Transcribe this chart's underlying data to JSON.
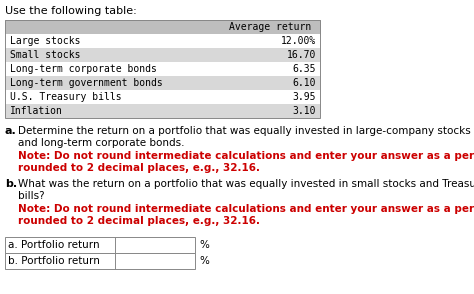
{
  "title": "Use the following table:",
  "table_header": "Average return",
  "table_rows": [
    [
      "Large stocks",
      "12.00%"
    ],
    [
      "Small stocks",
      "16.70"
    ],
    [
      "Long-term corporate bonds",
      "6.35"
    ],
    [
      "Long-term government bonds",
      "6.10"
    ],
    [
      "U.S. Treasury bills",
      "3.95"
    ],
    [
      "Inflation",
      "3.10"
    ]
  ],
  "part_a_label": "a.",
  "part_a_line1": "Determine the return on a portfolio that was equally invested in large-company stocks",
  "part_a_line2": "and long-term corporate bonds.",
  "part_a_note1": "Note: Do not round intermediate calculations and enter your answer as a percent",
  "part_a_note2": "rounded to 2 decimal places, e.g., 32.16.",
  "part_b_label": "b.",
  "part_b_line1": "What was the return on a portfolio that was equally invested in small stocks and Treasury",
  "part_b_line2": "bills?",
  "part_b_note1": "Note: Do not round intermediate calculations and enter your answer as a percent",
  "part_b_note2": "rounded to 2 decimal places, e.g., 32.16.",
  "answer_a_label": "a. Portfolio return",
  "answer_b_label": "b. Portfolio return",
  "percent_sign": "%",
  "bg_color": "#ffffff",
  "table_header_bg": "#bebebe",
  "table_row_bg_even": "#ffffff",
  "table_row_bg_odd": "#d8d8d8",
  "note_color": "#cc0000",
  "text_color": "#000000",
  "mono_font": "monospace",
  "sans_font": "DejaVu Sans"
}
